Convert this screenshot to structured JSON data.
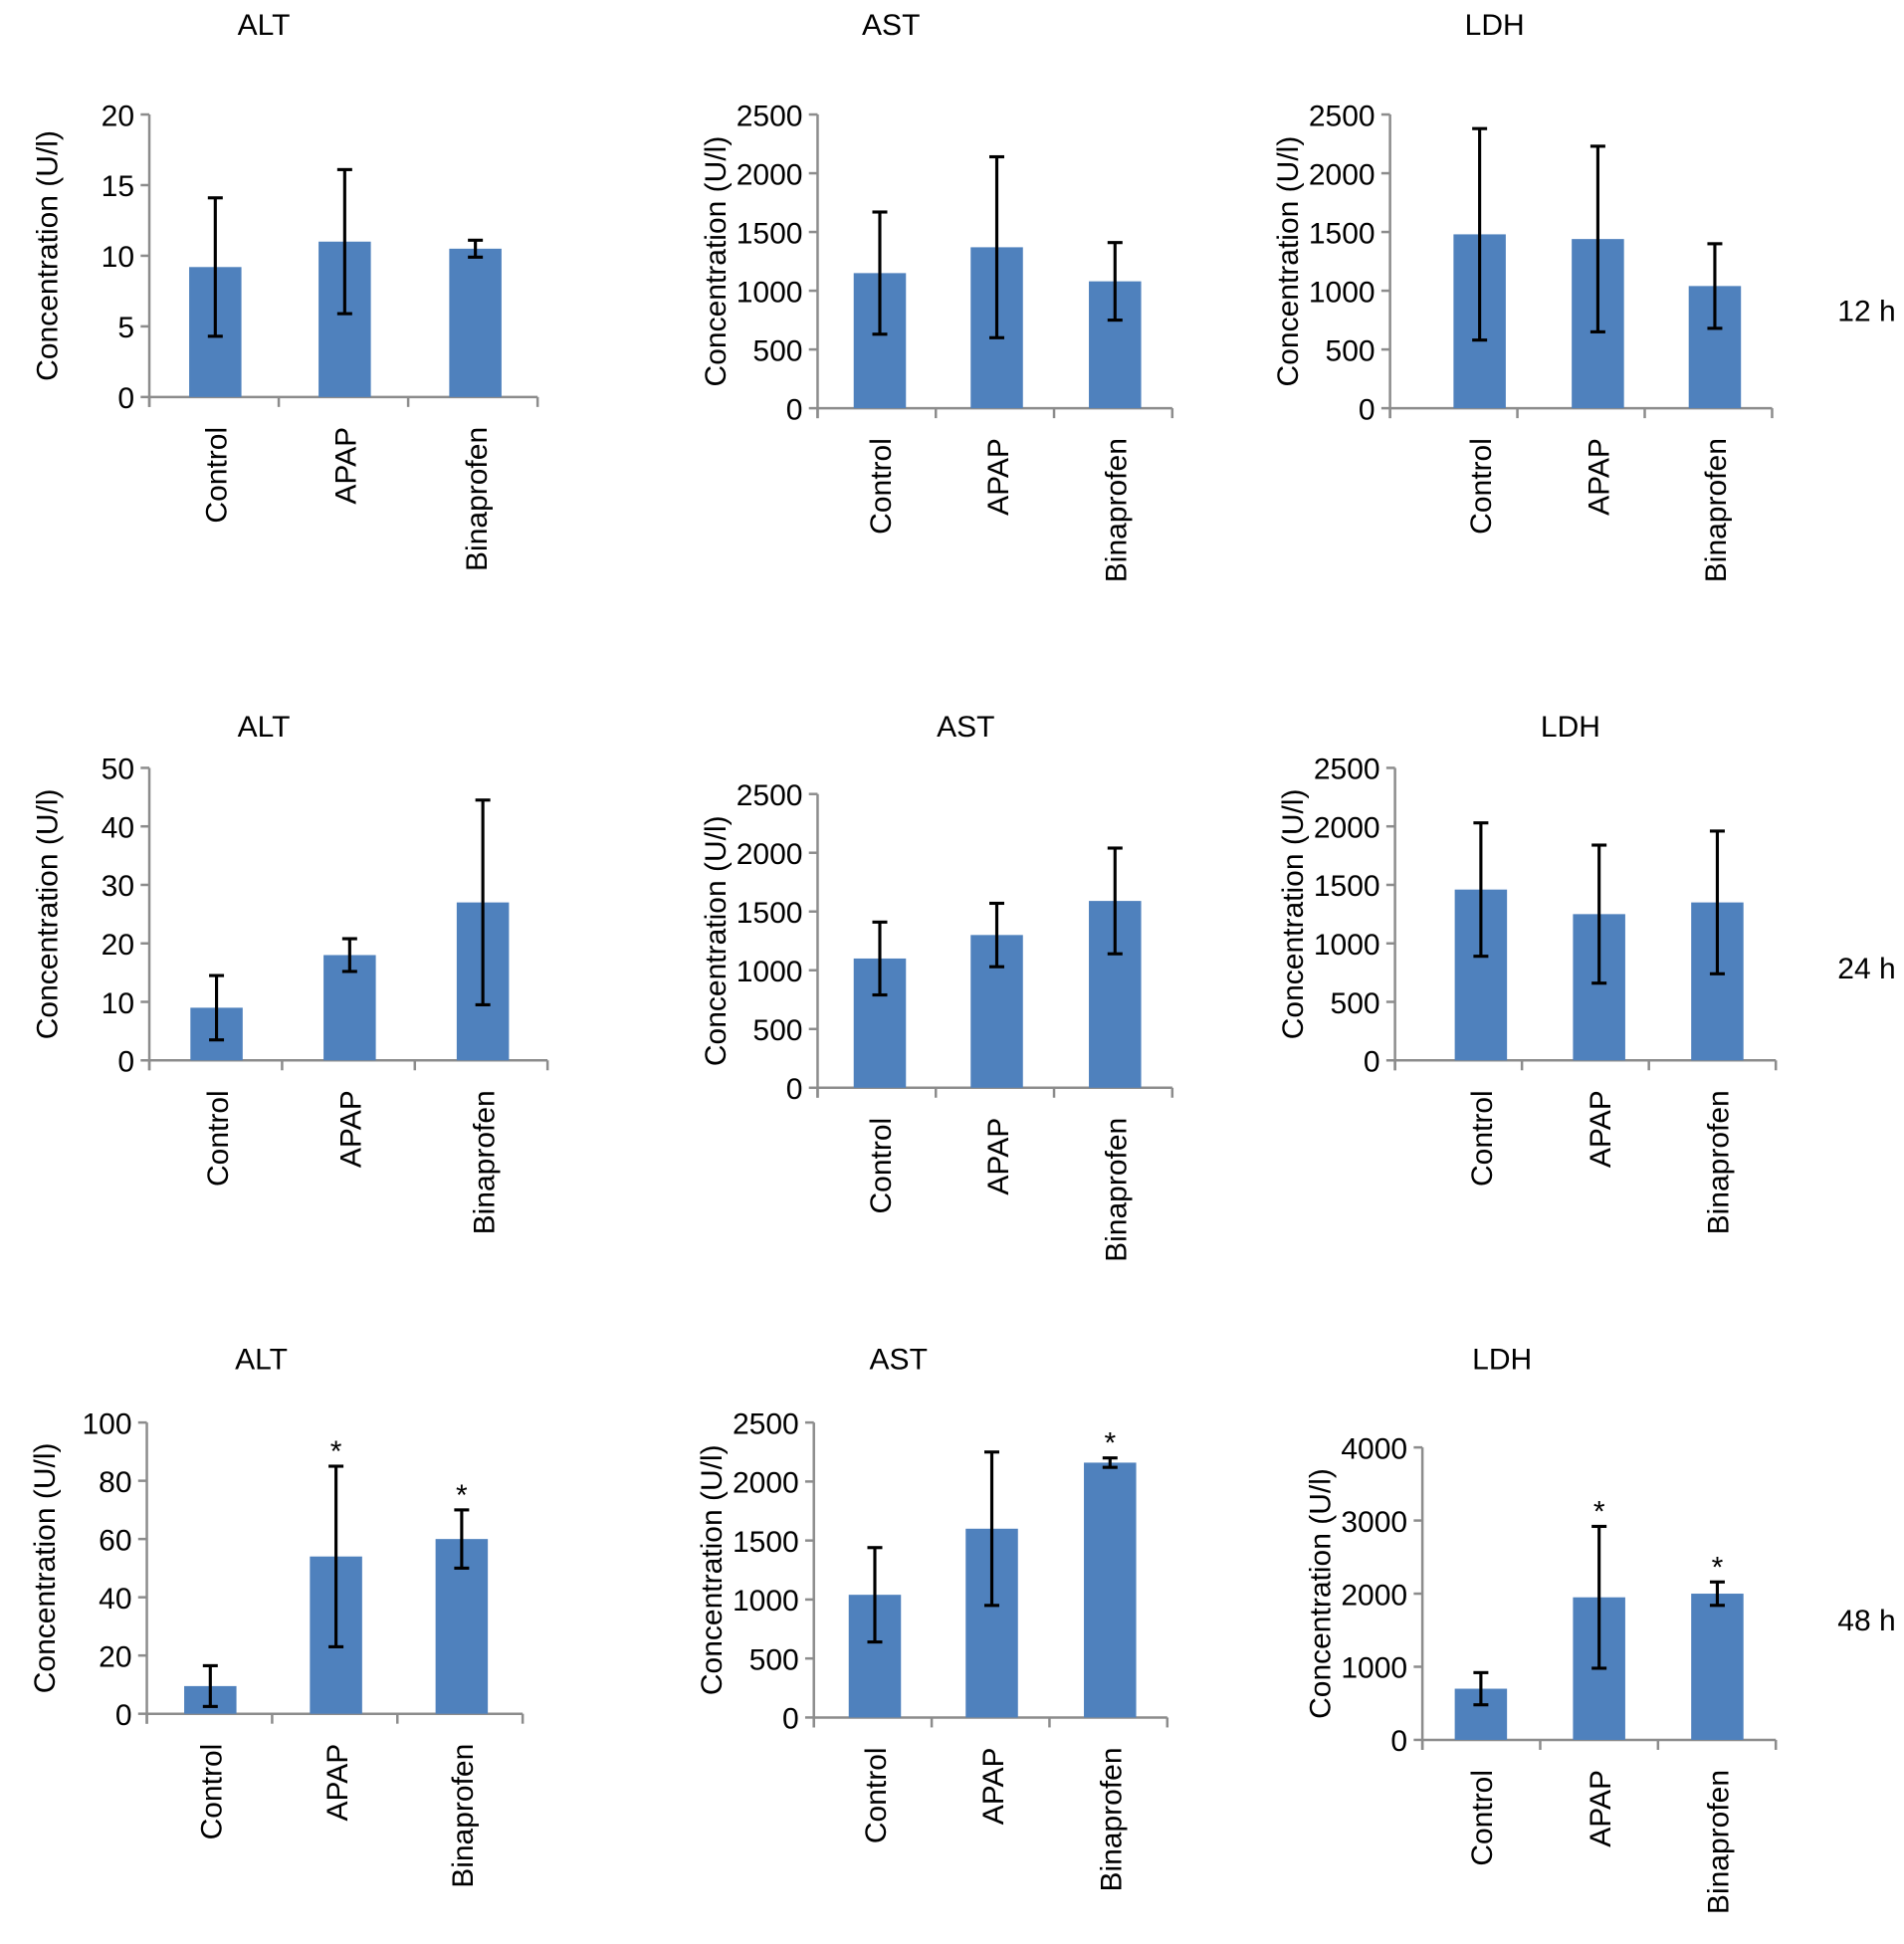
{
  "colors": {
    "bar": "#4f81bd",
    "axis": "#8c8c8c",
    "error": "#000000"
  },
  "chart_data": [
    {
      "type": "bar",
      "title": "ALT",
      "row_label": "12 h",
      "ylabel": "Concentration (U/l)",
      "categories": [
        "Control",
        "APAP",
        "Binaprofen"
      ],
      "values": [
        9.2,
        11,
        10.5
      ],
      "errors": [
        4.9,
        5.1,
        0.6
      ],
      "significant": [
        false,
        false,
        false
      ],
      "ylim": [
        0,
        20
      ],
      "yticks": [
        "0",
        "5",
        "10",
        "15",
        "20"
      ]
    },
    {
      "type": "bar",
      "title": "AST",
      "row_label": "12 h",
      "ylabel": "Concentration (U/l)",
      "categories": [
        "Control",
        "APAP",
        "Binaprofen"
      ],
      "values": [
        1150,
        1370,
        1080
      ],
      "errors": [
        520,
        770,
        330
      ],
      "significant": [
        false,
        false,
        false
      ],
      "ylim": [
        0,
        2500
      ],
      "yticks": [
        "0",
        "500",
        "1000",
        "1500",
        "2000",
        "2500"
      ]
    },
    {
      "type": "bar",
      "title": "LDH",
      "row_label": "12 h",
      "ylabel": "Concentration (U/l)",
      "categories": [
        "Control",
        "APAP",
        "Binaprofen"
      ],
      "values": [
        1480,
        1440,
        1040
      ],
      "errors": [
        900,
        790,
        360
      ],
      "significant": [
        false,
        false,
        false
      ],
      "ylim": [
        0,
        2500
      ],
      "yticks": [
        "0",
        "500",
        "1000",
        "1500",
        "2000",
        "2500"
      ]
    },
    {
      "type": "bar",
      "title": "ALT",
      "row_label": "24 h",
      "ylabel": "Concentration (U/l)",
      "categories": [
        "Control",
        "APAP",
        "Binaprofen"
      ],
      "values": [
        9,
        18,
        27
      ],
      "errors": [
        5.5,
        2.8,
        17.5
      ],
      "significant": [
        false,
        false,
        false
      ],
      "ylim": [
        0,
        50
      ],
      "yticks": [
        "0",
        "10",
        "20",
        "30",
        "40",
        "50"
      ]
    },
    {
      "type": "bar",
      "title": "AST",
      "row_label": "24 h",
      "ylabel": "Concentration (U/l)",
      "categories": [
        "Control",
        "APAP",
        "Binaprofen"
      ],
      "values": [
        1100,
        1300,
        1590
      ],
      "errors": [
        310,
        270,
        450
      ],
      "significant": [
        false,
        false,
        false
      ],
      "ylim": [
        0,
        2500
      ],
      "yticks": [
        "0",
        "500",
        "1000",
        "1500",
        "2000",
        "2500"
      ]
    },
    {
      "type": "bar",
      "title": "LDH",
      "row_label": "24 h",
      "ylabel": "Concentration (U/l)",
      "categories": [
        "Control",
        "APAP",
        "Binaprofen"
      ],
      "values": [
        1460,
        1250,
        1350
      ],
      "errors": [
        570,
        590,
        610
      ],
      "significant": [
        false,
        false,
        false
      ],
      "ylim": [
        0,
        2500
      ],
      "yticks": [
        "0",
        "500",
        "1000",
        "1500",
        "2000",
        "2500"
      ]
    },
    {
      "type": "bar",
      "title": "ALT",
      "row_label": "48 h",
      "ylabel": "Concentration (U/l)",
      "categories": [
        "Control",
        "APAP",
        "Binaprofen"
      ],
      "values": [
        9.5,
        54,
        60
      ],
      "errors": [
        7,
        31,
        10
      ],
      "significant": [
        false,
        true,
        true
      ],
      "ylim": [
        0,
        100
      ],
      "yticks": [
        "0",
        "20",
        "40",
        "60",
        "80",
        "100"
      ]
    },
    {
      "type": "bar",
      "title": "AST",
      "row_label": "48 h",
      "ylabel": "Concentration (U/l)",
      "categories": [
        "Control",
        "APAP",
        "Binaprofen"
      ],
      "values": [
        1040,
        1600,
        2160
      ],
      "errors": [
        400,
        650,
        40
      ],
      "significant": [
        false,
        false,
        true
      ],
      "ylim": [
        0,
        2500
      ],
      "yticks": [
        "0",
        "500",
        "1000",
        "1500",
        "2000",
        "2500"
      ]
    },
    {
      "type": "bar",
      "title": "LDH",
      "row_label": "48 h",
      "ylabel": "Concentration (U/l)",
      "categories": [
        "Control",
        "APAP",
        "Binaprofen"
      ],
      "values": [
        700,
        1950,
        2000
      ],
      "errors": [
        220,
        970,
        160
      ],
      "significant": [
        false,
        true,
        true
      ],
      "ylim": [
        0,
        4000
      ],
      "yticks": [
        "0",
        "1000",
        "2000",
        "3000",
        "4000"
      ]
    }
  ],
  "row_labels": [
    "12 h",
    "24 h",
    "48 h"
  ],
  "significance_marker": "*"
}
